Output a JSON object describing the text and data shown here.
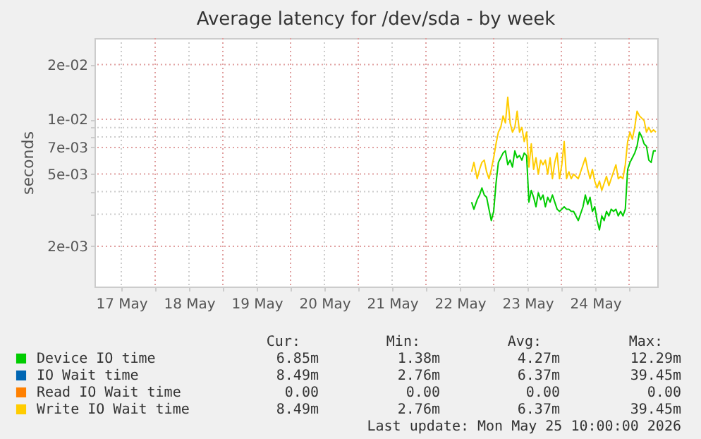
{
  "chart_data": {
    "type": "line",
    "title": "Average latency for /dev/sda - by week",
    "ylabel": "seconds",
    "x": [
      "2026-05-22T16:10",
      "2026-05-22T17:00",
      "2026-05-22T18:10",
      "2026-05-22T19:00",
      "2026-05-22T19:50",
      "2026-05-22T20:40",
      "2026-05-22T21:30",
      "2026-05-22T22:20",
      "2026-05-22T23:10",
      "2026-05-23T00:00",
      "2026-05-23T00:50",
      "2026-05-23T01:40",
      "2026-05-23T02:30",
      "2026-05-23T03:20",
      "2026-05-23T04:10",
      "2026-05-23T05:00",
      "2026-05-23T05:50",
      "2026-05-23T06:40",
      "2026-05-23T07:30",
      "2026-05-23T08:20",
      "2026-05-23T09:10",
      "2026-05-23T10:00",
      "2026-05-23T10:50",
      "2026-05-23T11:40",
      "2026-05-23T12:30",
      "2026-05-23T13:20",
      "2026-05-23T14:10",
      "2026-05-23T15:00",
      "2026-05-23T15:50",
      "2026-05-23T16:40",
      "2026-05-23T17:30",
      "2026-05-23T18:20",
      "2026-05-23T19:10",
      "2026-05-23T20:00",
      "2026-05-23T20:50",
      "2026-05-23T21:40",
      "2026-05-23T22:30",
      "2026-05-23T23:20",
      "2026-05-24T00:10",
      "2026-05-24T01:00",
      "2026-05-24T01:50",
      "2026-05-24T02:40",
      "2026-05-24T03:30",
      "2026-05-24T04:20",
      "2026-05-24T06:00",
      "2026-05-24T07:40",
      "2026-05-24T08:30",
      "2026-05-24T09:20",
      "2026-05-24T10:10",
      "2026-05-24T11:00",
      "2026-05-24T11:50",
      "2026-05-24T12:40",
      "2026-05-24T13:30",
      "2026-05-24T14:20",
      "2026-05-24T15:10",
      "2026-05-24T16:00",
      "2026-05-24T16:50",
      "2026-05-24T17:40",
      "2026-05-24T18:30",
      "2026-05-24T19:20",
      "2026-05-24T20:10",
      "2026-05-24T21:00",
      "2026-05-24T21:50",
      "2026-05-24T22:40",
      "2026-05-24T23:30",
      "2026-05-25T00:20",
      "2026-05-25T01:10",
      "2026-05-25T02:00",
      "2026-05-25T02:50",
      "2026-05-25T03:40",
      "2026-05-25T04:30",
      "2026-05-25T05:20",
      "2026-05-25T06:10",
      "2026-05-25T07:00",
      "2026-05-25T07:50",
      "2026-05-25T08:40",
      "2026-05-25T09:30"
    ],
    "series": [
      {
        "name": "Device IO time",
        "color": "#00cc00",
        "values": [
          0.0035,
          0.0032,
          0.00361,
          0.00383,
          0.00419,
          0.00383,
          0.00372,
          0.0032,
          0.00277,
          0.00311,
          0.00444,
          0.00579,
          0.00614,
          0.00652,
          0.0067,
          0.00562,
          0.00596,
          0.00546,
          0.0067,
          0.00614,
          0.00632,
          0.00596,
          0.00652,
          0.00632,
          0.0035,
          0.00406,
          0.00372,
          0.0033,
          0.00394,
          0.00361,
          0.00383,
          0.0033,
          0.00372,
          0.0035,
          0.00383,
          0.0035,
          0.0032,
          0.00311,
          0.0032,
          0.0033,
          0.0032,
          0.0032,
          0.00311,
          0.00311,
          0.00277,
          0.0033,
          0.00383,
          0.0034,
          0.00372,
          0.00311,
          0.0033,
          0.00277,
          0.00246,
          0.00294,
          0.00277,
          0.00311,
          0.00294,
          0.0032,
          0.00311,
          0.0032,
          0.00294,
          0.00311,
          0.00294,
          0.0032,
          0.0053,
          0.00579,
          0.00614,
          0.00652,
          0.00711,
          0.0085,
          0.00802,
          0.00733,
          0.00711,
          0.00596,
          0.00579,
          0.0067,
          0.0067
        ]
      },
      {
        "name": "IO Wait time",
        "color": "#0066b3",
        "values": [
          null,
          null,
          null,
          null,
          null,
          null,
          null,
          null,
          null,
          null,
          null,
          null,
          null,
          null,
          null,
          null,
          null,
          null,
          null,
          null,
          null,
          null,
          null,
          null,
          null,
          null,
          null,
          null,
          null,
          null,
          null,
          null,
          null,
          null,
          null,
          null,
          null,
          null,
          null,
          null,
          null,
          null,
          null,
          null,
          null,
          null,
          null,
          null,
          null,
          null,
          null,
          null,
          null,
          null,
          null,
          null,
          null,
          null,
          null,
          null,
          null,
          null,
          null,
          null,
          null,
          null,
          null,
          null,
          null,
          null,
          null,
          null,
          null,
          null,
          null,
          null,
          null
        ]
      },
      {
        "name": "Read IO Wait time",
        "color": "#ff8000",
        "values": [
          null,
          null,
          null,
          null,
          null,
          null,
          null,
          null,
          null,
          null,
          null,
          null,
          null,
          null,
          null,
          null,
          null,
          null,
          null,
          null,
          null,
          null,
          null,
          null,
          null,
          null,
          null,
          null,
          null,
          null,
          null,
          null,
          null,
          null,
          null,
          null,
          null,
          null,
          null,
          null,
          null,
          null,
          null,
          null,
          null,
          null,
          null,
          null,
          null,
          null,
          null,
          null,
          null,
          null,
          null,
          null,
          null,
          null,
          null,
          null,
          null,
          null,
          null,
          null,
          null,
          null,
          null,
          null,
          null,
          null,
          null,
          null,
          null,
          null,
          null,
          null,
          null
        ]
      },
      {
        "name": "Write IO Wait time",
        "color": "#ffcc00",
        "values": [
          0.00514,
          0.00579,
          0.00471,
          0.0053,
          0.00579,
          0.00596,
          0.00514,
          0.00471,
          0.0053,
          0.00614,
          0.00733,
          0.0085,
          0.00902,
          0.01045,
          0.00955,
          0.01324,
          0.00955,
          0.0085,
          0.00902,
          0.01109,
          0.0085,
          0.00902,
          0.00755,
          0.0085,
          0.00546,
          0.00733,
          0.0053,
          0.00614,
          0.00499,
          0.00596,
          0.00562,
          0.00596,
          0.00499,
          0.00614,
          0.00471,
          0.00579,
          0.00652,
          0.00471,
          0.00562,
          0.00755,
          0.00471,
          0.00514,
          0.00471,
          0.00499,
          0.00471,
          0.00562,
          0.00614,
          0.0053,
          0.00471,
          0.0053,
          0.00457,
          0.00419,
          0.00457,
          0.00406,
          0.00444,
          0.00485,
          0.00431,
          0.00471,
          0.00514,
          0.00562,
          0.00471,
          0.00485,
          0.00471,
          0.00562,
          0.00755,
          0.0085,
          0.00778,
          0.00902,
          0.01109,
          0.01045,
          0.01015,
          0.00984,
          0.0085,
          0.00902,
          0.0085,
          0.00875,
          0.0085
        ]
      }
    ],
    "xlim": [
      "2026-05-17T02:30",
      "2026-05-25T10:00"
    ],
    "xticks": [
      {
        "value": "2026-05-17T12:00",
        "label": "17 May"
      },
      {
        "value": "2026-05-18T00:00",
        "label": null
      },
      {
        "value": "2026-05-18T12:00",
        "label": "18 May"
      },
      {
        "value": "2026-05-19T00:00",
        "label": null
      },
      {
        "value": "2026-05-19T12:00",
        "label": "19 May"
      },
      {
        "value": "2026-05-20T00:00",
        "label": null
      },
      {
        "value": "2026-05-20T12:00",
        "label": "20 May"
      },
      {
        "value": "2026-05-21T00:00",
        "label": null
      },
      {
        "value": "2026-05-21T12:00",
        "label": "21 May"
      },
      {
        "value": "2026-05-22T00:00",
        "label": null
      },
      {
        "value": "2026-05-22T12:00",
        "label": "22 May"
      },
      {
        "value": "2026-05-23T00:00",
        "label": null
      },
      {
        "value": "2026-05-23T12:00",
        "label": "23 May"
      },
      {
        "value": "2026-05-24T00:00",
        "label": null
      },
      {
        "value": "2026-05-24T12:00",
        "label": "24 May"
      },
      {
        "value": "2026-05-25T00:00",
        "label": null
      }
    ],
    "ylim": [
      0.0012,
      0.028
    ],
    "yticks": [
      {
        "value": 0.002,
        "label": "2e-03"
      },
      {
        "value": 0.003,
        "label": null
      },
      {
        "value": 0.004,
        "label": null
      },
      {
        "value": 0.005,
        "label": "5e-03"
      },
      {
        "value": 0.007,
        "label": "7e-03"
      },
      {
        "value": 0.008,
        "label": null
      },
      {
        "value": 0.009,
        "label": null
      },
      {
        "value": 0.01,
        "label": "1e-02"
      },
      {
        "value": 0.02,
        "label": "2e-02"
      }
    ],
    "log": true,
    "grid": true,
    "legend": "bottom",
    "annotations": [
      "Cur:",
      "Min:",
      "Avg:",
      "Max:",
      "6.85m",
      "1.38m",
      "4.27m",
      "12.29m",
      "8.49m",
      "2.76m",
      "6.37m",
      "39.45m",
      "0.00",
      "0.00",
      "0.00",
      "0.00",
      "8.49m",
      "2.76m",
      "6.37m",
      "39.45m",
      "Last update: Mon May 25 10:00:00 2026"
    ]
  }
}
